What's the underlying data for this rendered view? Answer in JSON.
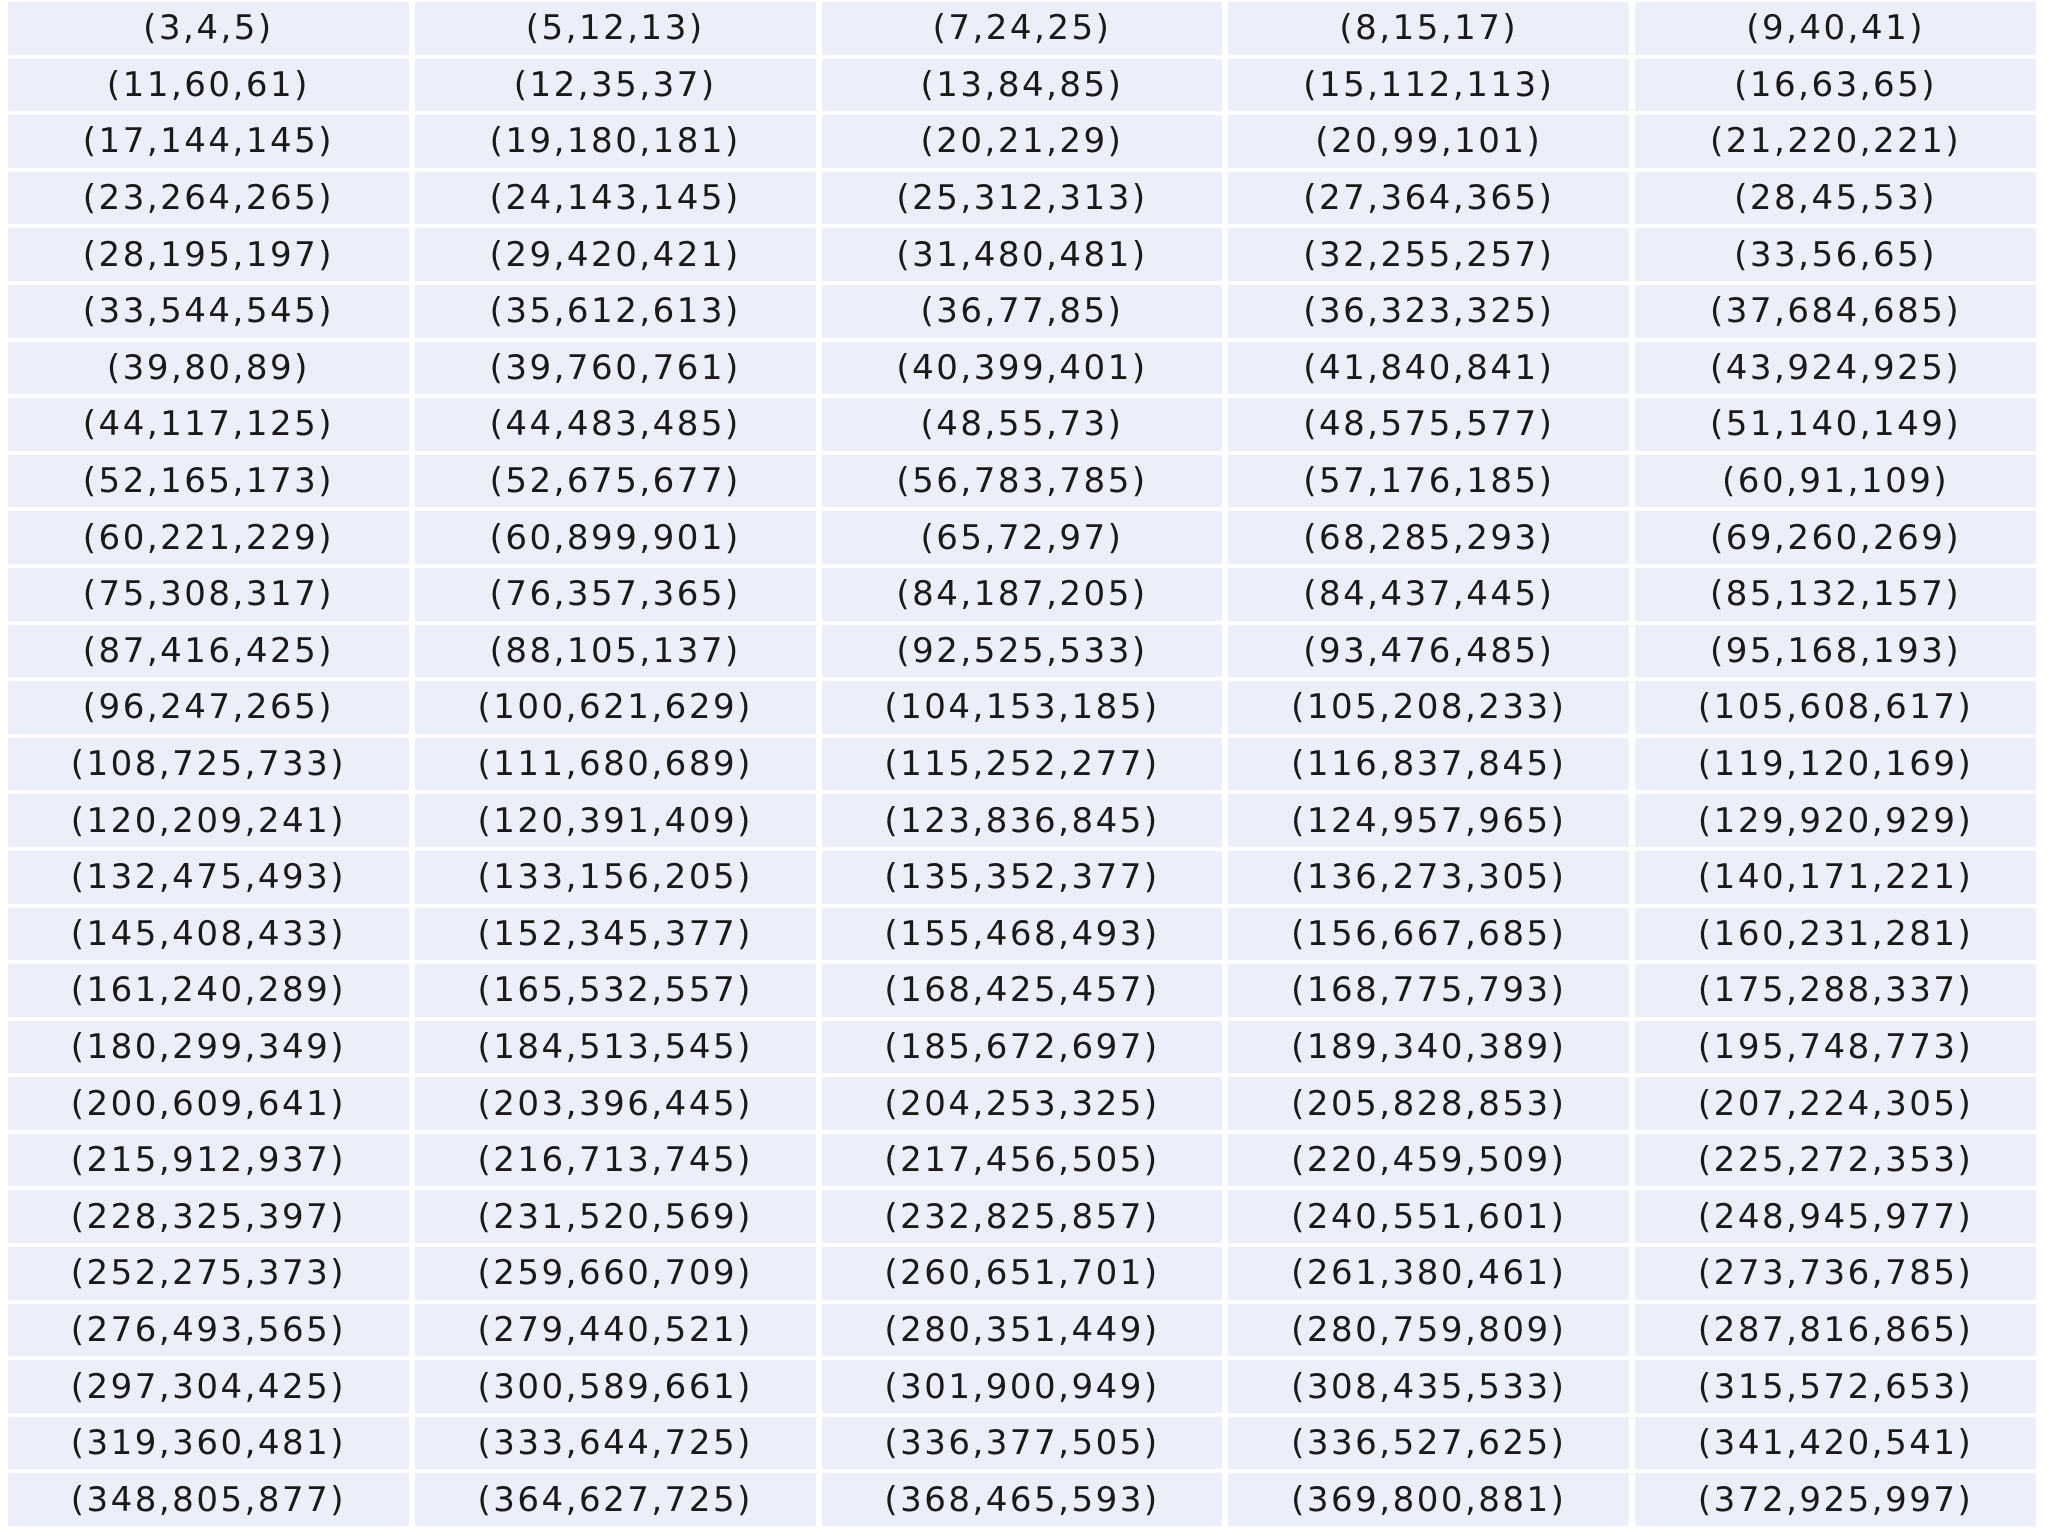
{
  "rows": [
    [
      "(3,4,5)",
      "(5,12,13)",
      "(7,24,25)",
      "(8,15,17)",
      "(9,40,41)"
    ],
    [
      "(11,60,61)",
      "(12,35,37)",
      "(13,84,85)",
      "(15,112,113)",
      "(16,63,65)"
    ],
    [
      "(17,144,145)",
      "(19,180,181)",
      "(20,21,29)",
      "(20,99,101)",
      "(21,220,221)"
    ],
    [
      "(23,264,265)",
      "(24,143,145)",
      "(25,312,313)",
      "(27,364,365)",
      "(28,45,53)"
    ],
    [
      "(28,195,197)",
      "(29,420,421)",
      "(31,480,481)",
      "(32,255,257)",
      "(33,56,65)"
    ],
    [
      "(33,544,545)",
      "(35,612,613)",
      "(36,77,85)",
      "(36,323,325)",
      "(37,684,685)"
    ],
    [
      "(39,80,89)",
      "(39,760,761)",
      "(40,399,401)",
      "(41,840,841)",
      "(43,924,925)"
    ],
    [
      "(44,117,125)",
      "(44,483,485)",
      "(48,55,73)",
      "(48,575,577)",
      "(51,140,149)"
    ],
    [
      "(52,165,173)",
      "(52,675,677)",
      "(56,783,785)",
      "(57,176,185)",
      "(60,91,109)"
    ],
    [
      "(60,221,229)",
      "(60,899,901)",
      "(65,72,97)",
      "(68,285,293)",
      "(69,260,269)"
    ],
    [
      "(75,308,317)",
      "(76,357,365)",
      "(84,187,205)",
      "(84,437,445)",
      "(85,132,157)"
    ],
    [
      "(87,416,425)",
      "(88,105,137)",
      "(92,525,533)",
      "(93,476,485)",
      "(95,168,193)"
    ],
    [
      "(96,247,265)",
      "(100,621,629)",
      "(104,153,185)",
      "(105,208,233)",
      "(105,608,617)"
    ],
    [
      "(108,725,733)",
      "(111,680,689)",
      "(115,252,277)",
      "(116,837,845)",
      "(119,120,169)"
    ],
    [
      "(120,209,241)",
      "(120,391,409)",
      "(123,836,845)",
      "(124,957,965)",
      "(129,920,929)"
    ],
    [
      "(132,475,493)",
      "(133,156,205)",
      "(135,352,377)",
      "(136,273,305)",
      "(140,171,221)"
    ],
    [
      "(145,408,433)",
      "(152,345,377)",
      "(155,468,493)",
      "(156,667,685)",
      "(160,231,281)"
    ],
    [
      "(161,240,289)",
      "(165,532,557)",
      "(168,425,457)",
      "(168,775,793)",
      "(175,288,337)"
    ],
    [
      "(180,299,349)",
      "(184,513,545)",
      "(185,672,697)",
      "(189,340,389)",
      "(195,748,773)"
    ],
    [
      "(200,609,641)",
      "(203,396,445)",
      "(204,253,325)",
      "(205,828,853)",
      "(207,224,305)"
    ],
    [
      "(215,912,937)",
      "(216,713,745)",
      "(217,456,505)",
      "(220,459,509)",
      "(225,272,353)"
    ],
    [
      "(228,325,397)",
      "(231,520,569)",
      "(232,825,857)",
      "(240,551,601)",
      "(248,945,977)"
    ],
    [
      "(252,275,373)",
      "(259,660,709)",
      "(260,651,701)",
      "(261,380,461)",
      "(273,736,785)"
    ],
    [
      "(276,493,565)",
      "(279,440,521)",
      "(280,351,449)",
      "(280,759,809)",
      "(287,816,865)"
    ],
    [
      "(297,304,425)",
      "(300,589,661)",
      "(301,900,949)",
      "(308,435,533)",
      "(315,572,653)"
    ],
    [
      "(319,360,481)",
      "(333,644,725)",
      "(336,377,505)",
      "(336,527,625)",
      "(341,420,541)"
    ],
    [
      "(348,805,877)",
      "(364,627,725)",
      "(368,465,593)",
      "(369,800,881)",
      "(372,925,997)"
    ]
  ],
  "colors": {
    "cell_background": "#eceef9",
    "grid_lines": "#ffffff",
    "text": "#1a1a1a"
  }
}
